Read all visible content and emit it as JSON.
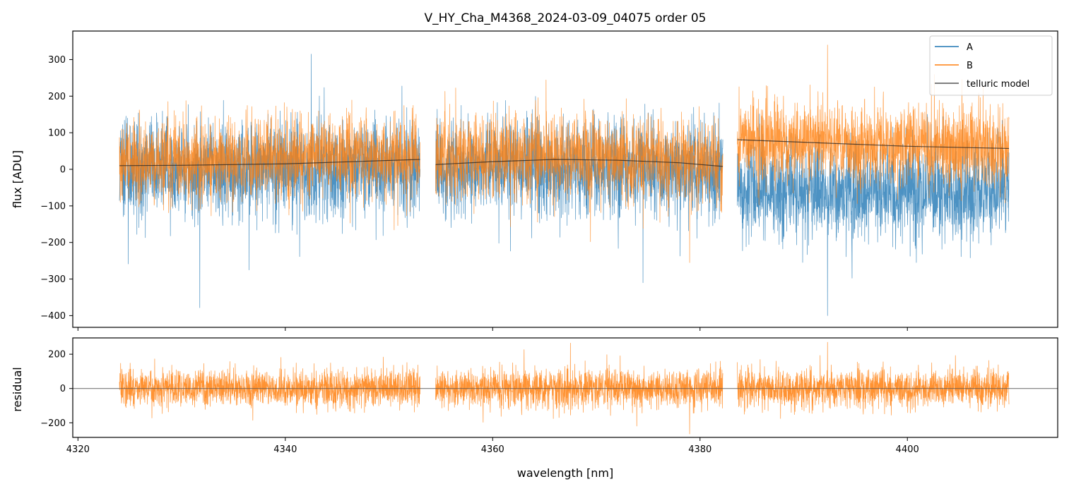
{
  "chart_data": [
    {
      "type": "line",
      "panel": "top",
      "title": "V_HY_Cha_M4368_2024-03-09_04075  order 05",
      "xlabel": "",
      "ylabel": "flux [ADU]",
      "xlim": [
        4319.5,
        4414.5
      ],
      "ylim": [
        -432,
        378
      ],
      "yticks": [
        300,
        200,
        100,
        0,
        -100,
        -200,
        -300,
        -400
      ],
      "ytick_labels": [
        "300",
        "200",
        "100",
        "0",
        "−100",
        "−200",
        "−300",
        "−400"
      ],
      "xticks": [
        4320,
        4340,
        4360,
        4380,
        4400
      ],
      "segments": [
        [
          4324.0,
          4353.0
        ],
        [
          4354.5,
          4382.2
        ],
        [
          4383.6,
          4409.8
        ]
      ],
      "legend": {
        "location": "top-right",
        "entries": [
          "A",
          "B",
          "telluric model"
        ]
      },
      "series": [
        {
          "name": "A",
          "color": "#1f77b4",
          "alpha": 0.8,
          "noise_sigma": 65,
          "baseline": [
            [
              4324.0,
              0
            ],
            [
              4353.0,
              5
            ],
            [
              4354.5,
              5
            ],
            [
              4368.0,
              0
            ],
            [
              4382.2,
              0
            ],
            [
              4383.6,
              -60
            ],
            [
              4409.8,
              -65
            ]
          ],
          "extremes": [
            {
              "x": 4342.5,
              "y": 315
            },
            {
              "x": 4392.3,
              "y": -400
            },
            {
              "x": 4336.5,
              "y": -275
            },
            {
              "x": 4374.5,
              "y": -310
            }
          ]
        },
        {
          "name": "B",
          "color": "#ff7f0e",
          "alpha": 0.8,
          "noise_sigma": 55,
          "baseline": [
            [
              4324.0,
              20
            ],
            [
              4353.0,
              40
            ],
            [
              4354.5,
              35
            ],
            [
              4368.0,
              40
            ],
            [
              4382.2,
              20
            ],
            [
              4383.6,
              80
            ],
            [
              4409.8,
              60
            ]
          ],
          "extremes": [
            {
              "x": 4392.3,
              "y": 340
            },
            {
              "x": 4379.0,
              "y": -255
            }
          ]
        },
        {
          "name": "telluric model",
          "color": "#222222",
          "alpha": 0.75,
          "points": [
            [
              4324.0,
              10
            ],
            [
              4330.0,
              11
            ],
            [
              4340.0,
              15
            ],
            [
              4353.0,
              27
            ],
            [
              null,
              null
            ],
            [
              4354.5,
              13
            ],
            [
              4360.0,
              21
            ],
            [
              4366.0,
              27
            ],
            [
              4372.0,
              25
            ],
            [
              4378.0,
              18
            ],
            [
              4382.2,
              8
            ],
            [
              null,
              null
            ],
            [
              4383.6,
              81
            ],
            [
              4390.0,
              74
            ],
            [
              4400.0,
              63
            ],
            [
              4409.8,
              57
            ]
          ]
        }
      ]
    },
    {
      "type": "line",
      "panel": "bottom",
      "xlabel": "wavelength [nm]",
      "ylabel": "residual",
      "xlim": [
        4319.5,
        4414.5
      ],
      "ylim": [
        -285,
        295
      ],
      "yticks": [
        200,
        0,
        -200
      ],
      "ytick_labels": [
        "200",
        "0",
        "−200"
      ],
      "xticks": [
        4320,
        4340,
        4360,
        4380,
        4400
      ],
      "xtick_labels": [
        "4320",
        "4340",
        "4360",
        "4380",
        "4400"
      ],
      "zero_line": 0,
      "segments": [
        [
          4324.0,
          4353.0
        ],
        [
          4354.5,
          4382.2
        ],
        [
          4383.6,
          4409.8
        ]
      ],
      "series": [
        {
          "name": "B residual",
          "color": "#ff7f0e",
          "alpha": 0.85,
          "noise_sigma": 55,
          "extremes": [
            {
              "x": 4392.3,
              "y": 270
            },
            {
              "x": 4379.0,
              "y": -265
            },
            {
              "x": 4367.5,
              "y": 265
            }
          ]
        }
      ]
    }
  ]
}
